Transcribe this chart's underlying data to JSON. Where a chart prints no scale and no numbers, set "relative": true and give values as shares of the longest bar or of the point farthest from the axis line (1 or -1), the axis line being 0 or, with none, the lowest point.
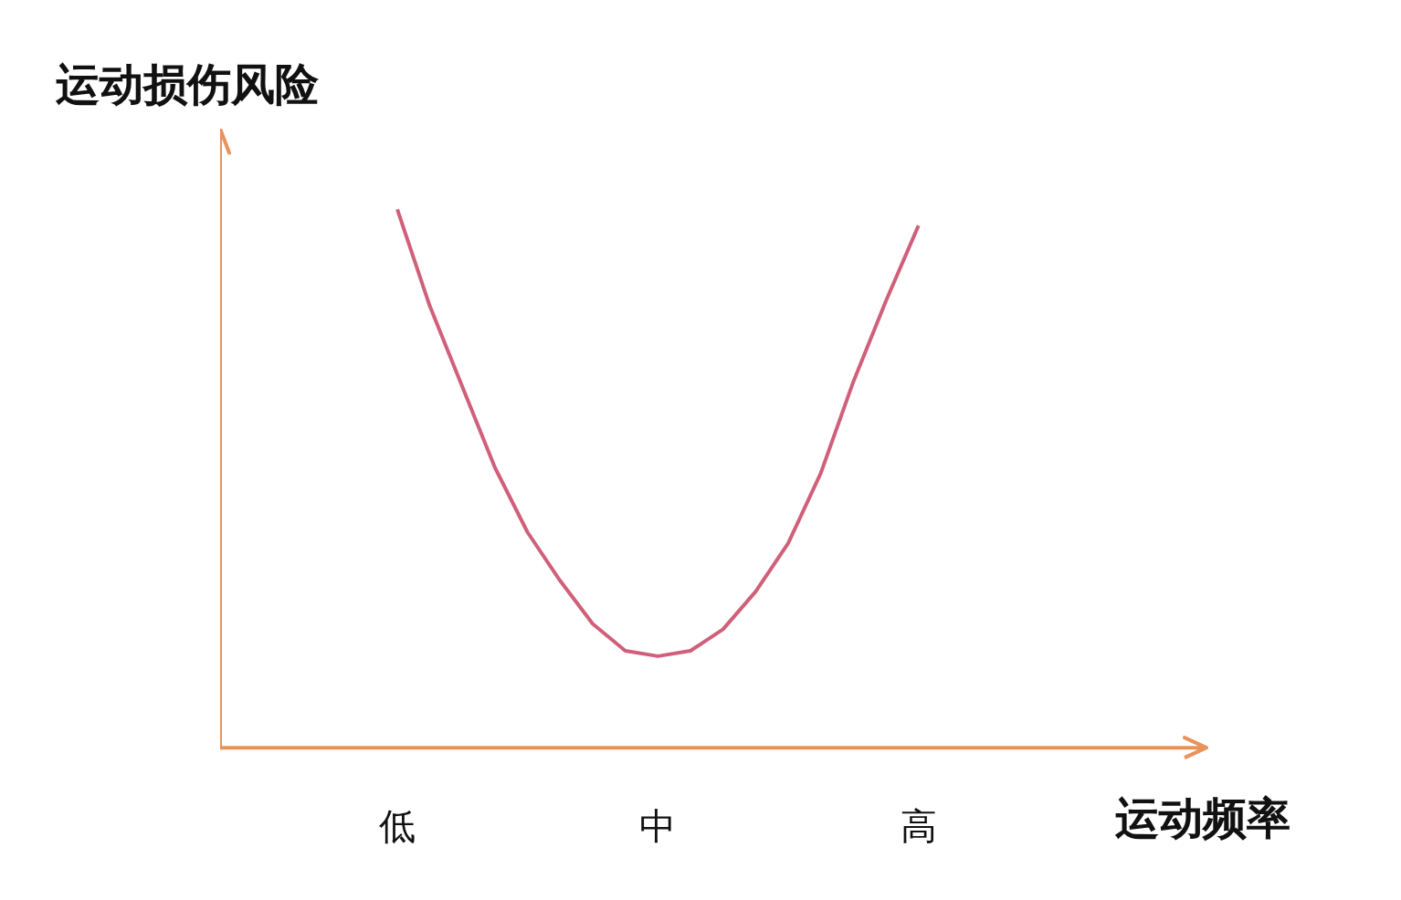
{
  "chart_data": {
    "type": "line",
    "relative": true,
    "xlabel": "运动频率",
    "ylabel": "运动损伤风险",
    "categories": [
      "低",
      null,
      null,
      null,
      null,
      null,
      null,
      null,
      "中",
      null,
      null,
      null,
      null,
      null,
      null,
      null,
      "高"
    ],
    "grid": false,
    "marker": "none",
    "line_style": "solid",
    "series": [
      {
        "color": "#d0607a",
        "values": [
          1.0,
          0.82,
          0.67,
          0.52,
          0.4,
          0.31,
          0.23,
          0.18,
          0.17,
          0.18,
          0.22,
          0.29,
          0.38,
          0.51,
          0.68,
          0.83,
          0.97
        ]
      }
    ]
  }
}
